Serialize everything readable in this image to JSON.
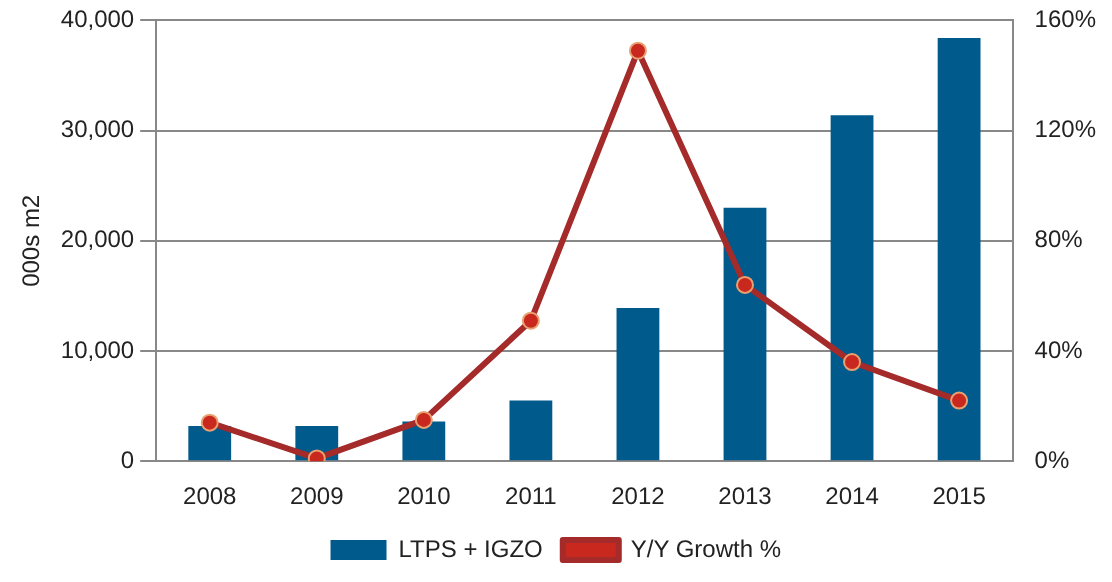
{
  "chart_data": {
    "type": "bar",
    "ylabel": "000s m2",
    "categories": [
      "2008",
      "2009",
      "2010",
      "2011",
      "2012",
      "2013",
      "2014",
      "2015"
    ],
    "series": [
      {
        "name": "LTPS + IGZO",
        "color": "#005a8c",
        "values": [
          3200,
          3200,
          3600,
          5500,
          13900,
          23000,
          31400,
          38400
        ]
      },
      {
        "name": "Y/Y Growth %",
        "type": "line",
        "axis": "y2",
        "color": "#a52a2a",
        "marker": "circle",
        "values": [
          14,
          1,
          15,
          51,
          149,
          64,
          36,
          22
        ]
      }
    ],
    "ylim": [
      0,
      40000
    ],
    "yticks": [
      {
        "value": 0,
        "label": "0"
      },
      {
        "value": 10000,
        "label": "10,000"
      },
      {
        "value": 20000,
        "label": "20,000"
      },
      {
        "value": 30000,
        "label": "30,000"
      },
      {
        "value": 40000,
        "label": "40,000"
      }
    ],
    "y2lim": [
      0,
      160
    ],
    "y2ticks": [
      {
        "value": 0,
        "label": "0%"
      },
      {
        "value": 40,
        "label": "40%"
      },
      {
        "value": 80,
        "label": "80%"
      },
      {
        "value": 120,
        "label": "120%"
      },
      {
        "value": 160,
        "label": "160%"
      }
    ],
    "grid": "y",
    "legend": "bottom"
  }
}
